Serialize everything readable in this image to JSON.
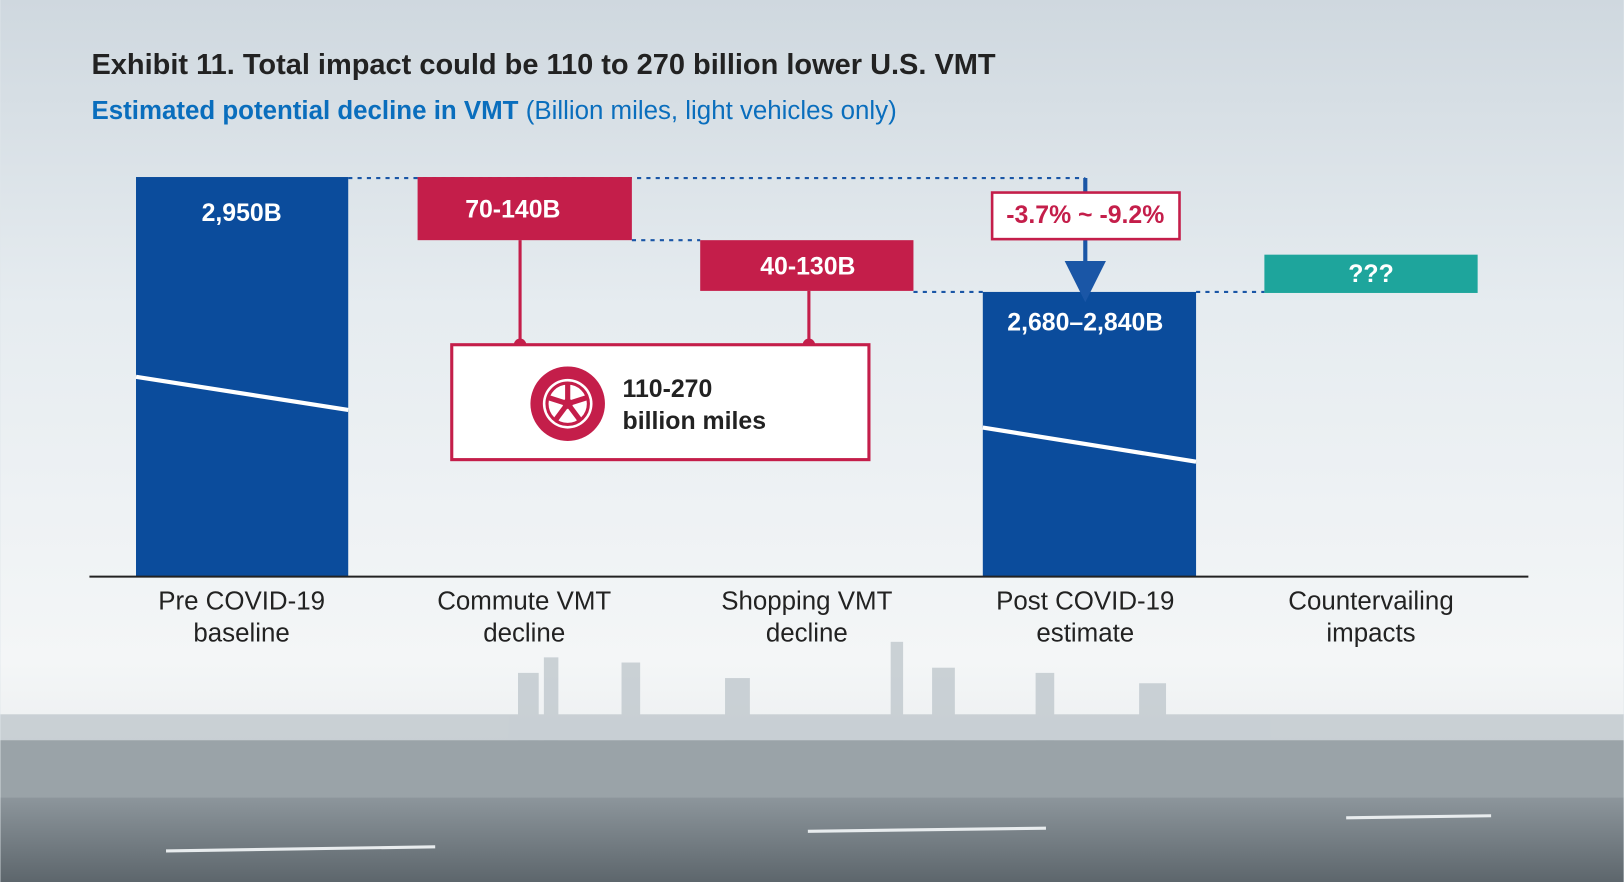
{
  "title": "Exhibit 11. Total impact could be 110 to 270 billion lower U.S. VMT",
  "subtitle": {
    "bold": "Estimated potential decline in VMT",
    "rest": "(Billion miles, light vehicles only)"
  },
  "bars": [
    {
      "label": "2,950B",
      "category": [
        "Pre COVID-19",
        "baseline"
      ]
    },
    {
      "label": "70-140B",
      "category": [
        "Commute VMT",
        "decline"
      ]
    },
    {
      "label": "40-130B",
      "category": [
        "Shopping VMT",
        "decline"
      ]
    },
    {
      "label": "2,680–2,840B",
      "category": [
        "Post COVID-19",
        "estimate"
      ]
    },
    {
      "label": "???",
      "category": [
        "Countervailing",
        "impacts"
      ]
    }
  ],
  "change_label": "-3.7% ~ -9.2%",
  "callout": {
    "line1": "110-270",
    "line2": "billion miles"
  }
}
